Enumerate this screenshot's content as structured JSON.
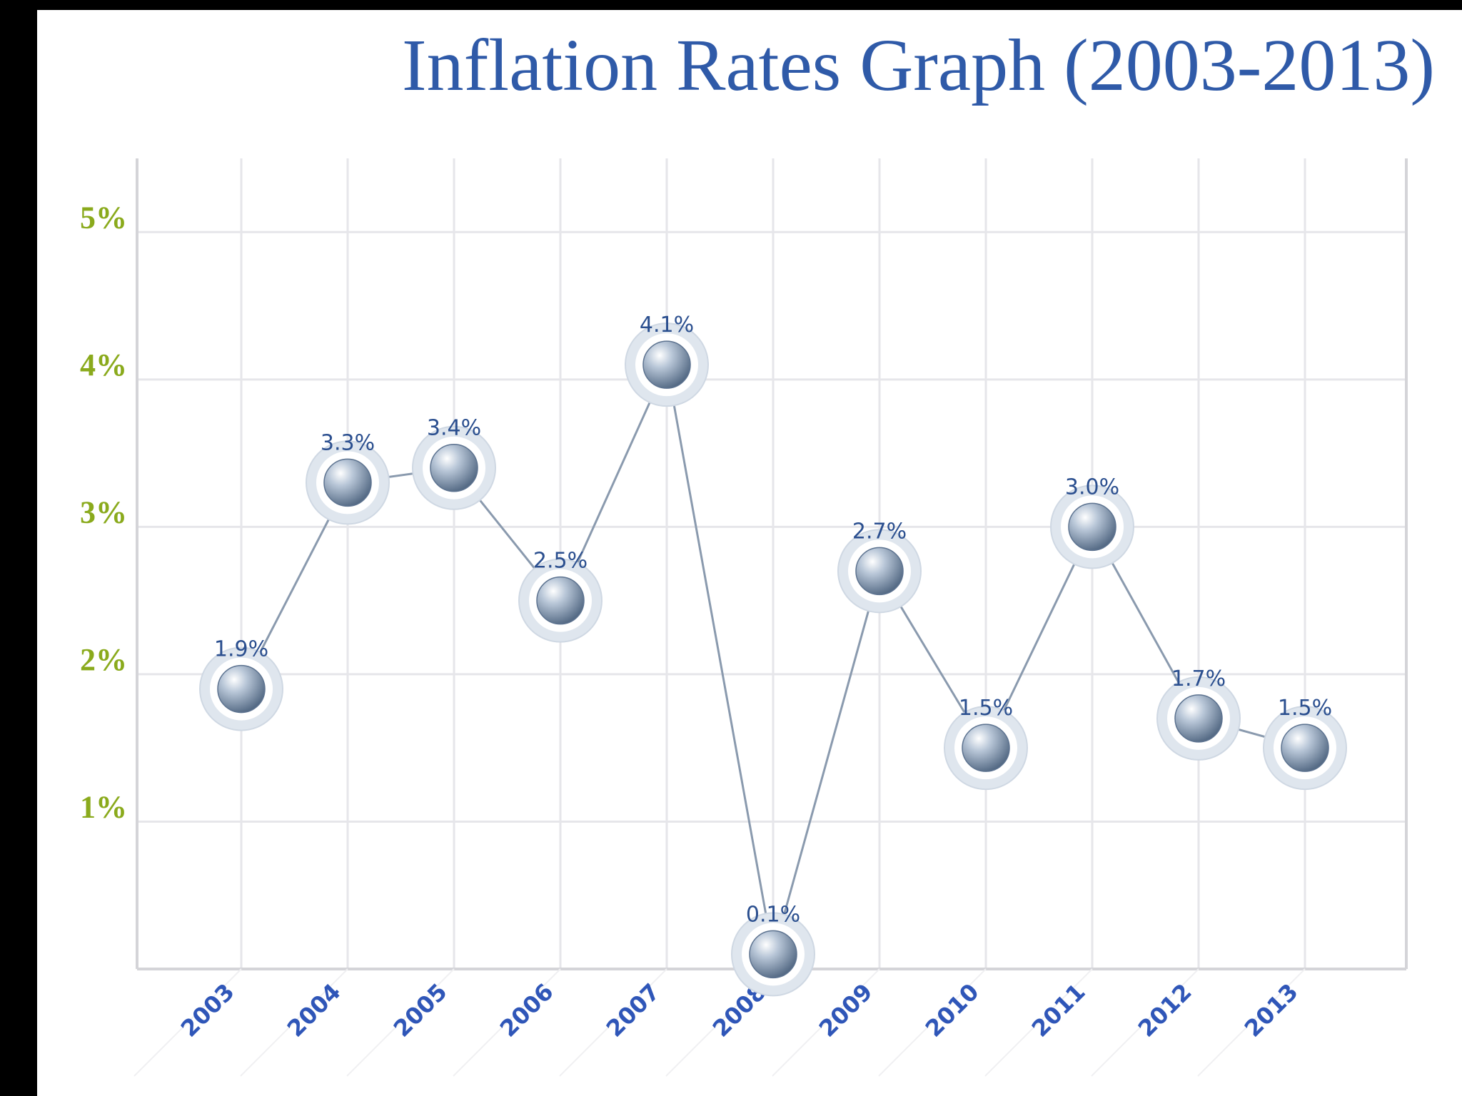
{
  "chart_data": {
    "type": "line",
    "title": "Inflation Rates Graph (2003-2013)",
    "xlabel": "",
    "ylabel": "",
    "categories": [
      "2003",
      "2004",
      "2005",
      "2006",
      "2007",
      "2008",
      "2009",
      "2010",
      "2011",
      "2012",
      "2013"
    ],
    "series": [
      {
        "values": [
          1.9,
          3.3,
          3.4,
          2.5,
          4.1,
          0.1,
          2.7,
          1.5,
          3.0,
          1.7,
          1.5
        ],
        "data_labels": [
          "1.9%",
          "3.3%",
          "3.4%",
          "2.5%",
          "4.1%",
          "0.1%",
          "2.7%",
          "1.5%",
          "3.0%",
          "1.7%",
          "1.5%"
        ]
      }
    ],
    "ylim": [
      0,
      5.5
    ],
    "yticks": [
      1,
      2,
      3,
      4,
      5
    ],
    "ytick_labels": [
      "1%",
      "2%",
      "3%",
      "4%",
      "5%"
    ],
    "grid": true,
    "legend": "none",
    "colors": {
      "title": "#2f5aa8",
      "ytick": "#8aaa1c",
      "xtick": "#2f56b8",
      "data_label": "#2b4f8f",
      "line": "#8a9aae",
      "marker": "#8ea2ba",
      "grid": "#e6e6ea",
      "axis": "#d4d4d8"
    }
  }
}
